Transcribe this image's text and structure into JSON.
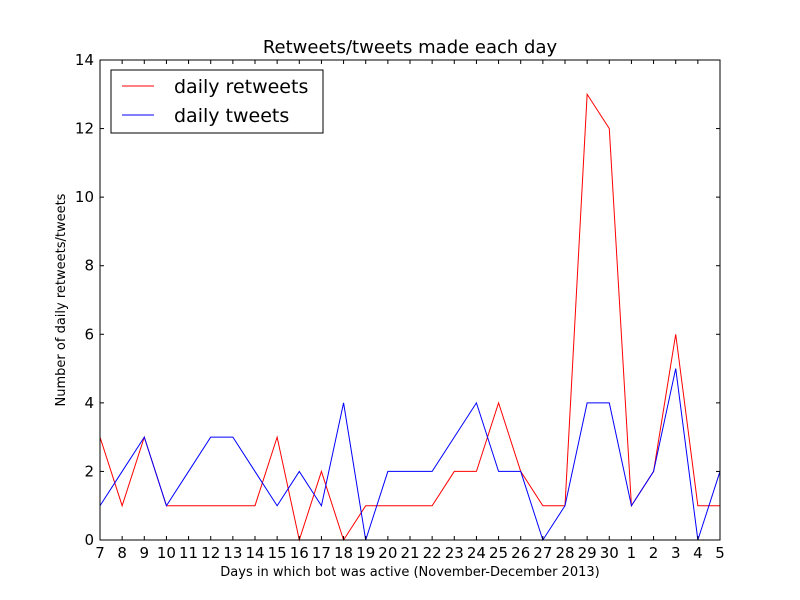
{
  "chart_data": {
    "type": "line",
    "title": "Retweets/tweets made each day",
    "xlabel": "Days in which bot was active (November-December 2013)",
    "ylabel": "Number of daily retweets/tweets",
    "x": [
      "7",
      "8",
      "9",
      "10",
      "11",
      "12",
      "13",
      "14",
      "15",
      "16",
      "17",
      "18",
      "19",
      "20",
      "21",
      "22",
      "23",
      "24",
      "25",
      "26",
      "27",
      "28",
      "29",
      "30",
      "1",
      "2",
      "3",
      "4",
      "5"
    ],
    "ylim": [
      0,
      14
    ],
    "yticks": [
      "0",
      "2",
      "4",
      "6",
      "8",
      "10",
      "12",
      "14"
    ],
    "grid": false,
    "legend_position": "top-left",
    "series": [
      {
        "name": "daily retweets",
        "color": "#ff0000",
        "values": [
          3,
          1,
          3,
          1,
          1,
          1,
          1,
          1,
          3,
          0,
          2,
          0,
          1,
          1,
          1,
          1,
          2,
          2,
          4,
          2,
          1,
          1,
          13,
          12,
          1,
          2,
          6,
          1,
          1
        ]
      },
      {
        "name": "daily tweets",
        "color": "#0000ff",
        "values": [
          1,
          2,
          3,
          1,
          2,
          3,
          3,
          2,
          1,
          2,
          1,
          4,
          0,
          2,
          2,
          2,
          3,
          4,
          2,
          2,
          0,
          1,
          4,
          4,
          1,
          2,
          5,
          0,
          2
        ]
      }
    ]
  }
}
